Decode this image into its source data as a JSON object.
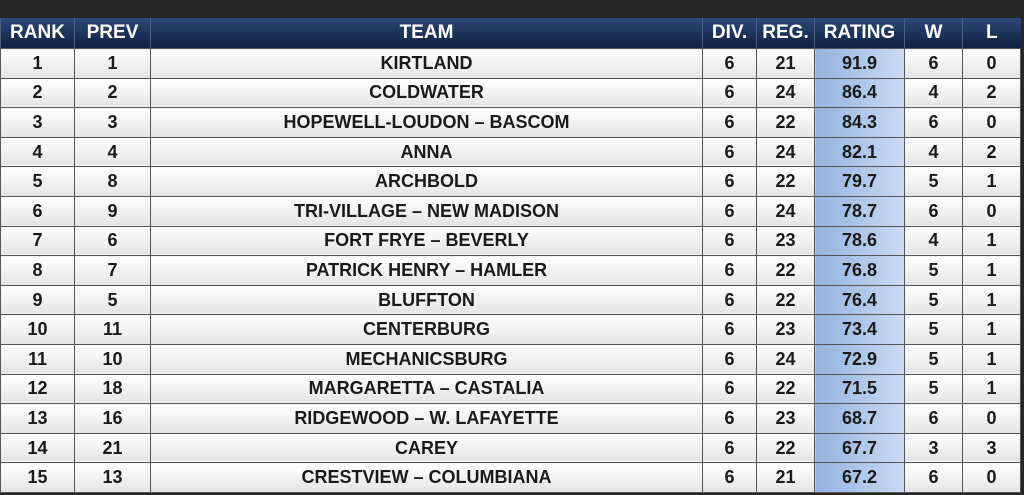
{
  "table": {
    "columns": [
      "RANK",
      "PREV",
      "TEAM",
      "DIV.",
      "REG.",
      "RATING",
      "W",
      "L"
    ],
    "rows": [
      [
        "1",
        "1",
        "KIRTLAND",
        "6",
        "21",
        "91.9",
        "6",
        "0"
      ],
      [
        "2",
        "2",
        "COLDWATER",
        "6",
        "24",
        "86.4",
        "4",
        "2"
      ],
      [
        "3",
        "3",
        "HOPEWELL-LOUDON – BASCOM",
        "6",
        "22",
        "84.3",
        "6",
        "0"
      ],
      [
        "4",
        "4",
        "ANNA",
        "6",
        "24",
        "82.1",
        "4",
        "2"
      ],
      [
        "5",
        "8",
        "ARCHBOLD",
        "6",
        "22",
        "79.7",
        "5",
        "1"
      ],
      [
        "6",
        "9",
        "TRI-VILLAGE – NEW MADISON",
        "6",
        "24",
        "78.7",
        "6",
        "0"
      ],
      [
        "7",
        "6",
        "FORT FRYE – BEVERLY",
        "6",
        "23",
        "78.6",
        "4",
        "1"
      ],
      [
        "8",
        "7",
        "PATRICK HENRY – HAMLER",
        "6",
        "22",
        "76.8",
        "5",
        "1"
      ],
      [
        "9",
        "5",
        "BLUFFTON",
        "6",
        "22",
        "76.4",
        "5",
        "1"
      ],
      [
        "10",
        "11",
        "CENTERBURG",
        "6",
        "23",
        "73.4",
        "5",
        "1"
      ],
      [
        "11",
        "10",
        "MECHANICSBURG",
        "6",
        "24",
        "72.9",
        "5",
        "1"
      ],
      [
        "12",
        "18",
        "MARGARETTA – CASTALIA",
        "6",
        "22",
        "71.5",
        "5",
        "1"
      ],
      [
        "13",
        "16",
        "RIDGEWOOD – W. LAFAYETTE",
        "6",
        "23",
        "68.7",
        "6",
        "0"
      ],
      [
        "14",
        "21",
        "CAREY",
        "6",
        "22",
        "67.7",
        "3",
        "3"
      ],
      [
        "15",
        "13",
        "CRESTVIEW – COLUMBIANA",
        "6",
        "21",
        "67.2",
        "6",
        "0"
      ]
    ]
  }
}
